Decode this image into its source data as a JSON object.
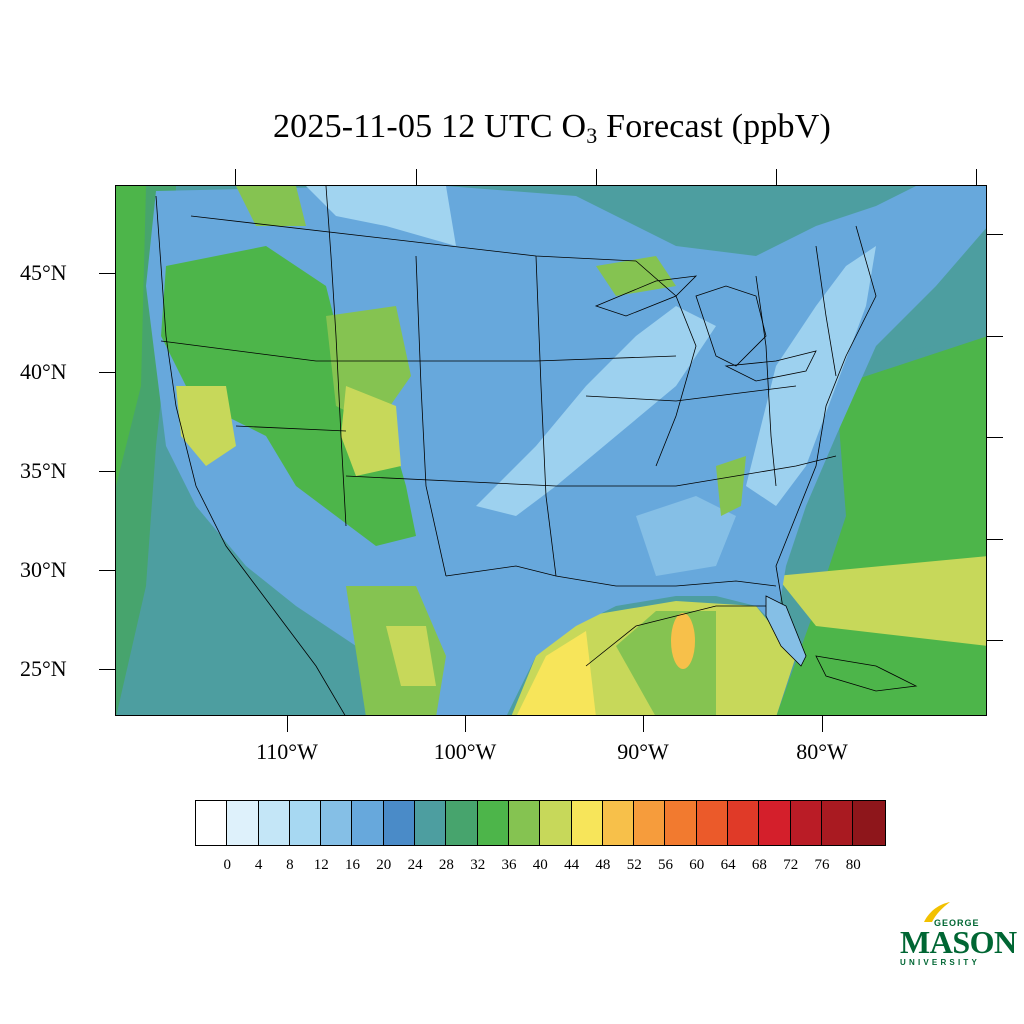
{
  "title": {
    "main": "2025-11-05 12 UTC O",
    "subscript": "3",
    "suffix": " Forecast (ppbV)"
  },
  "map": {
    "latitude_labels": [
      "45°N",
      "40°N",
      "35°N",
      "30°N",
      "25°N"
    ],
    "longitude_labels": [
      "110°W",
      "100°W",
      "90°W",
      "80°W"
    ]
  },
  "colorbar": {
    "colors": [
      "#ffffff",
      "#def1fb",
      "#c4e6f7",
      "#a7d8f2",
      "#85bfe6",
      "#67a8dc",
      "#4a8bc8",
      "#4d9ea0",
      "#47a46d",
      "#4db54a",
      "#85c351",
      "#c7d85a",
      "#f7e55a",
      "#f7c04a",
      "#f69c3c",
      "#f27a2f",
      "#eb5a2a",
      "#e03a28",
      "#d41f2b",
      "#ba1c26",
      "#a91a21",
      "#8e161b"
    ],
    "labels": [
      "0",
      "4",
      "8",
      "12",
      "16",
      "20",
      "24",
      "28",
      "32",
      "36",
      "40",
      "44",
      "48",
      "52",
      "56",
      "60",
      "64",
      "68",
      "72",
      "76",
      "80"
    ]
  },
  "logo": {
    "george": "GEORGE",
    "mason": "MASON",
    "university": "UNIVERSITY"
  }
}
